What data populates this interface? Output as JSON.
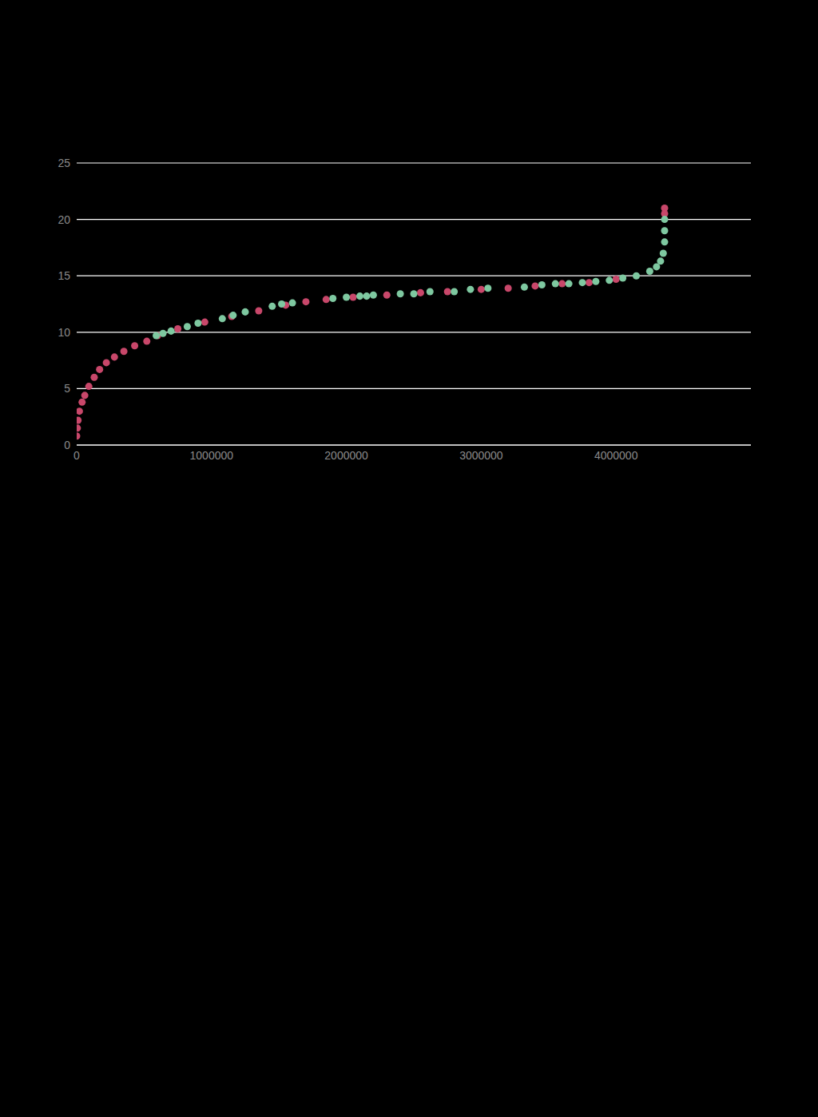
{
  "chart_data": {
    "type": "scatter",
    "xlim": [
      0,
      5000000
    ],
    "xticks": [
      0,
      1000000,
      2000000,
      3000000,
      4000000
    ],
    "ylim": [
      0,
      25
    ],
    "yticks": [
      0,
      5,
      10,
      15,
      20,
      25
    ],
    "grid": true,
    "marker": "circle",
    "series": [
      {
        "color": "#c8476a",
        "x": [
          0,
          5000,
          10000,
          20000,
          40000,
          60000,
          90000,
          130000,
          170000,
          220000,
          280000,
          350000,
          430000,
          520000,
          600000,
          750000,
          950000,
          1150000,
          1350000,
          1550000,
          1700000,
          1850000,
          2050000,
          2300000,
          2550000,
          2750000,
          3000000,
          3200000,
          3400000,
          3600000,
          3800000,
          4000000,
          4360000,
          4360000
        ],
        "values": [
          0.8,
          1.5,
          2.2,
          3.0,
          3.8,
          4.4,
          5.2,
          6.0,
          6.7,
          7.3,
          7.8,
          8.3,
          8.8,
          9.2,
          9.7,
          10.3,
          10.9,
          11.4,
          11.9,
          12.4,
          12.7,
          12.9,
          13.1,
          13.3,
          13.5,
          13.6,
          13.8,
          13.9,
          14.1,
          14.3,
          14.4,
          14.7,
          20.5,
          21.0
        ]
      },
      {
        "color": "#7ec8a0",
        "x": [
          590000,
          640000,
          700000,
          820000,
          900000,
          1080000,
          1160000,
          1250000,
          1450000,
          1520000,
          1600000,
          1900000,
          2000000,
          2100000,
          2150000,
          2200000,
          2400000,
          2500000,
          2620000,
          2800000,
          2920000,
          3050000,
          3320000,
          3450000,
          3550000,
          3650000,
          3750000,
          3850000,
          3950000,
          4050000,
          4150000,
          4250000,
          4300000,
          4330000,
          4350000,
          4360000,
          4360000,
          4360000
        ],
        "values": [
          9.7,
          9.9,
          10.1,
          10.5,
          10.8,
          11.2,
          11.5,
          11.8,
          12.3,
          12.5,
          12.6,
          13.0,
          13.1,
          13.2,
          13.2,
          13.3,
          13.4,
          13.4,
          13.6,
          13.6,
          13.8,
          13.9,
          14.0,
          14.2,
          14.3,
          14.3,
          14.4,
          14.5,
          14.6,
          14.8,
          15.0,
          15.4,
          15.8,
          16.3,
          17.0,
          18.0,
          19.0,
          20.0
        ]
      }
    ]
  }
}
